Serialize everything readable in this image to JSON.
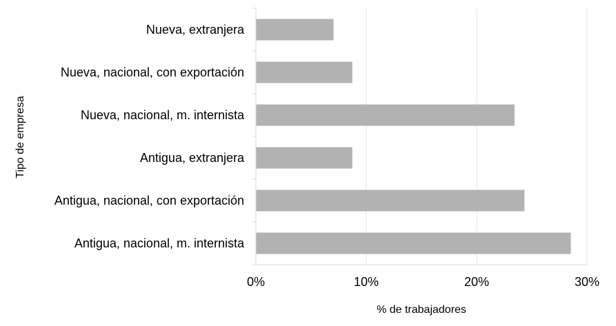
{
  "chart_data": {
    "type": "bar",
    "orientation": "horizontal",
    "categories": [
      "Nueva, extranjera",
      "Nueva, nacional, con exportación",
      "Nueva, nacional, m. internista",
      "Antigua, extranjera",
      "Antigua, nacional, con exportación",
      "Antigua, nacional, m. internista"
    ],
    "values": [
      7.0,
      8.7,
      23.4,
      8.7,
      24.3,
      28.5
    ],
    "tick_values": [
      0,
      10,
      20,
      30
    ],
    "tick_labels": [
      "0%",
      "10%",
      "20%",
      "30%"
    ],
    "xlabel": "% de trabajadores",
    "ylabel": "Tipo de empresa",
    "xlim": [
      0,
      30
    ],
    "grid": true,
    "legend": "none",
    "bar_color": "#b2b2b2",
    "grid_color": "#e6e6e6",
    "axis_color": "#d9d9d9"
  }
}
